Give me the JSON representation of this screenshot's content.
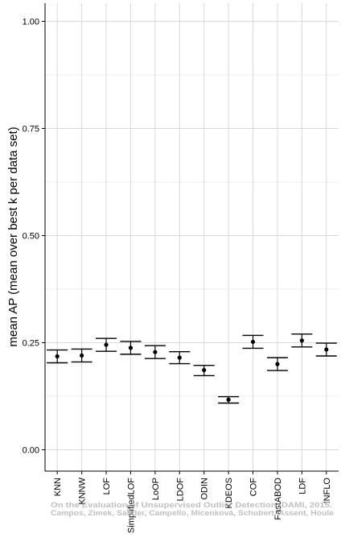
{
  "chart_data": {
    "type": "scatter",
    "title": "",
    "xlabel": "",
    "ylabel": "mean AP (mean over best k per data set)",
    "ylim": [
      0,
      1
    ],
    "yticks": [
      "0.00",
      "0.25",
      "0.50",
      "0.75",
      "1.00"
    ],
    "grid": true,
    "error_bars": true,
    "categories": [
      "KNN",
      "KNNW",
      "LOF",
      "SimplifiedLOF",
      "LoOP",
      "LDOF",
      "ODIN",
      "KDEOS",
      "COF",
      "FastABOD",
      "LDF",
      "INFLO"
    ],
    "values": [
      0.218,
      0.22,
      0.245,
      0.238,
      0.228,
      0.215,
      0.186,
      0.117,
      0.252,
      0.2,
      0.255,
      0.234
    ],
    "lower": [
      0.203,
      0.205,
      0.23,
      0.223,
      0.213,
      0.201,
      0.173,
      0.109,
      0.237,
      0.185,
      0.24,
      0.219
    ],
    "upper": [
      0.233,
      0.235,
      0.26,
      0.253,
      0.243,
      0.229,
      0.197,
      0.124,
      0.267,
      0.215,
      0.27,
      0.249
    ]
  },
  "watermark": {
    "line1": "On the Evaluation of Unsupervised Outlier Detection, DAMI, 2015.",
    "line2": "Campos, Zimek, Sander, Campello, Micenková, Schubert, Assent, Houle"
  },
  "colors": {
    "grid": "#d9d9d9",
    "axis": "#000000",
    "marker": "#000000",
    "watermark": "#b5b5b5"
  }
}
